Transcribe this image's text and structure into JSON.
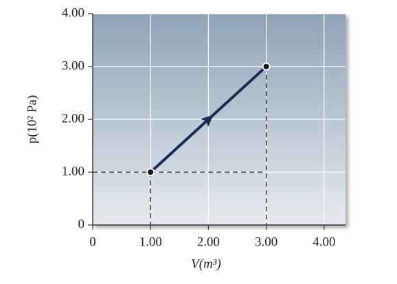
{
  "chart_data": {
    "type": "line",
    "xlabel": "V(m³)",
    "ylabel": "p(10² Pa)",
    "x": [
      1,
      3
    ],
    "series": [
      {
        "color": "#1b2b55",
        "values": [
          1,
          3
        ]
      }
    ],
    "xlim": [
      0,
      4.37
    ],
    "ylim": [
      0,
      4
    ],
    "xticks": [
      0,
      {
        "value": 1,
        "label": "1.00"
      },
      {
        "value": 2,
        "label": "2.00"
      },
      {
        "value": 3,
        "label": "3.00"
      },
      {
        "value": 4,
        "label": "4.00"
      }
    ],
    "yticks": [
      0,
      {
        "value": 1,
        "label": "1.00"
      },
      {
        "value": 2,
        "label": "2.00"
      },
      {
        "value": 3,
        "label": "3.00"
      },
      {
        "value": 4,
        "label": "4.00"
      }
    ],
    "grid": true
  }
}
